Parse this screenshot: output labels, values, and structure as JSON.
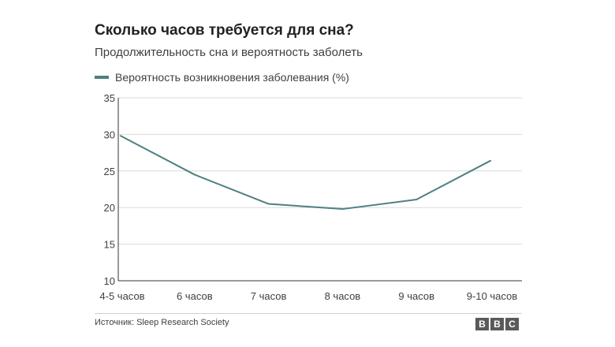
{
  "header": {
    "title": "Сколько часов требуется для сна?",
    "subtitle": "Продолжительность сна и вероятность заболеть"
  },
  "footer": {
    "source": "Источник: Sleep Research Society",
    "logo_letters": [
      "B",
      "B",
      "C"
    ]
  },
  "colors": {
    "series": "#4e8080",
    "grid": "#d9d9d9",
    "axis": "#333333",
    "text": "#404040"
  },
  "chart_data": {
    "type": "line",
    "title": "Сколько часов требуется для сна?",
    "subtitle": "Продолжительность сна и вероятность заболеть",
    "categories": [
      "4-5 часов",
      "6 часов",
      "7 часов",
      "8 часов",
      "9 часов",
      "9-10 часов"
    ],
    "series": [
      {
        "name": "Вероятность возникновения заболевания (%)",
        "values": [
          29.8,
          24.5,
          20.5,
          19.8,
          21.1,
          26.4
        ]
      }
    ],
    "ylim": [
      10,
      35
    ],
    "yticks": [
      10,
      15,
      20,
      25,
      30,
      35
    ],
    "grid": true,
    "legend": "top-left",
    "xlabel": "",
    "ylabel": ""
  }
}
